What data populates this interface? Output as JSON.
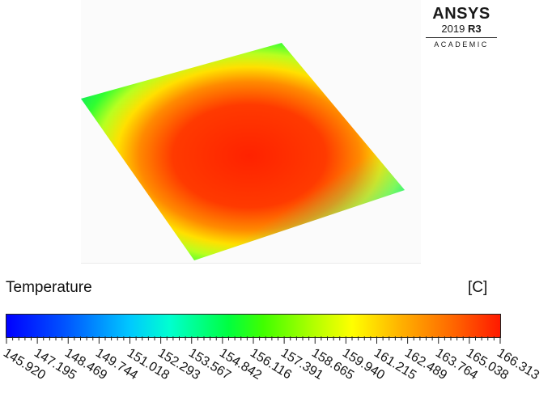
{
  "brand": {
    "name": "ANSYS",
    "version_year": "2019",
    "version_release": "R3",
    "edition": "ACADEMIC"
  },
  "legend": {
    "title": "Temperature",
    "unit": "[C]",
    "min": 145.92,
    "max": 166.313,
    "tick_labels": [
      "145.920",
      "147.195",
      "148.469",
      "149.744",
      "151.018",
      "152.293",
      "153.567",
      "154.842",
      "156.116",
      "157.391",
      "158.665",
      "159.940",
      "161.215",
      "162.489",
      "163.764",
      "165.038",
      "166.313"
    ],
    "colors": [
      "#0000ff",
      "#00c8ff",
      "#00ff40",
      "#ffff00",
      "#ff1a00"
    ]
  },
  "plot": {
    "variable": "temperature contour",
    "center_color": "#ff2a00",
    "edge_color": "#00e83c",
    "corner_color": "#00c8ff"
  }
}
